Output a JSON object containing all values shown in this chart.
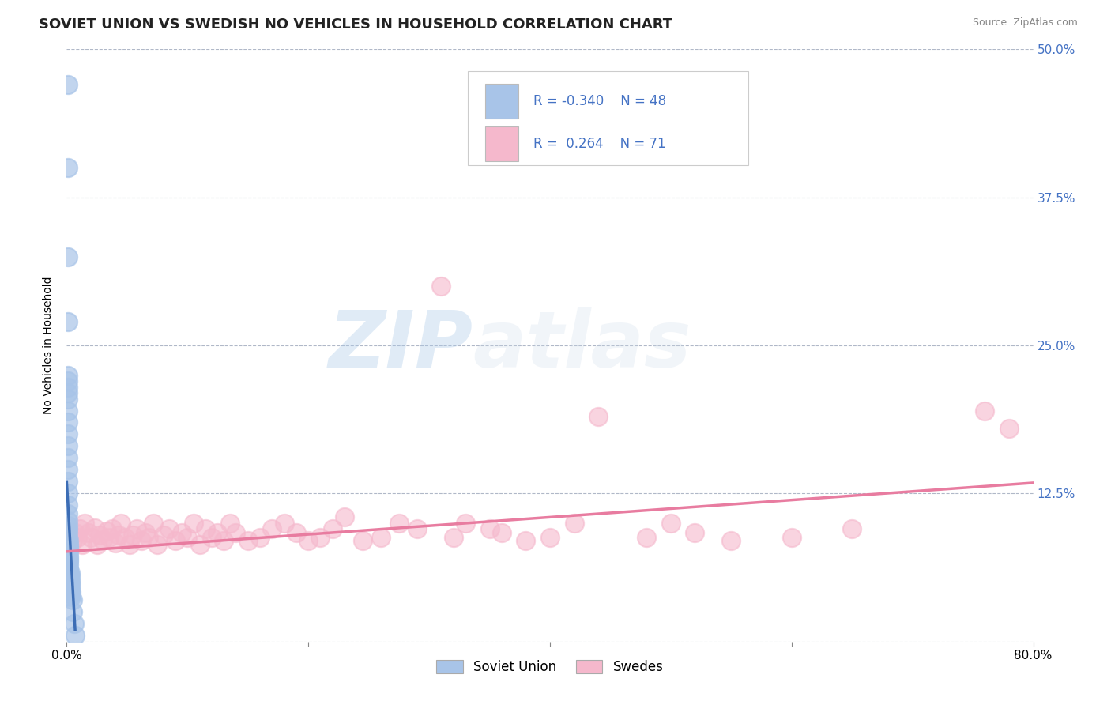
{
  "title": "SOVIET UNION VS SWEDISH NO VEHICLES IN HOUSEHOLD CORRELATION CHART",
  "source": "Source: ZipAtlas.com",
  "ylabel": "No Vehicles in Household",
  "xlim": [
    0.0,
    0.8
  ],
  "ylim": [
    0.0,
    0.5
  ],
  "xticks": [
    0.0,
    0.2,
    0.4,
    0.6,
    0.8
  ],
  "xticklabels": [
    "0.0%",
    "",
    "",
    "",
    "80.0%"
  ],
  "ytick_positions": [
    0.0,
    0.125,
    0.25,
    0.375,
    0.5
  ],
  "ytick_labels_right": [
    "",
    "12.5%",
    "25.0%",
    "37.5%",
    "50.0%"
  ],
  "soviet_R": -0.34,
  "soviet_N": 48,
  "swedes_R": 0.264,
  "swedes_N": 71,
  "soviet_color": "#a8c4e8",
  "swedes_color": "#f5b8cc",
  "soviet_line_color": "#3c6db5",
  "swedes_line_color": "#e87ca0",
  "legend_text_color": "#4472c4",
  "background_color": "#ffffff",
  "grid_color": "#b0b8c8",
  "watermark_zip": "ZIP",
  "watermark_atlas": "atlas",
  "title_fontsize": 13,
  "axis_label_fontsize": 10,
  "tick_fontsize": 11,
  "soviet_x": [
    0.001,
    0.001,
    0.001,
    0.001,
    0.001,
    0.001,
    0.001,
    0.001,
    0.001,
    0.001,
    0.001,
    0.001,
    0.001,
    0.001,
    0.001,
    0.001,
    0.001,
    0.001,
    0.001,
    0.001,
    0.001,
    0.001,
    0.001,
    0.001,
    0.002,
    0.002,
    0.002,
    0.002,
    0.002,
    0.002,
    0.002,
    0.002,
    0.002,
    0.002,
    0.002,
    0.003,
    0.003,
    0.003,
    0.003,
    0.003,
    0.003,
    0.004,
    0.004,
    0.004,
    0.005,
    0.005,
    0.006,
    0.007
  ],
  "soviet_y": [
    0.47,
    0.4,
    0.325,
    0.27,
    0.225,
    0.22,
    0.215,
    0.21,
    0.205,
    0.195,
    0.185,
    0.175,
    0.165,
    0.155,
    0.145,
    0.135,
    0.125,
    0.115,
    0.108,
    0.102,
    0.098,
    0.095,
    0.092,
    0.088,
    0.085,
    0.082,
    0.08,
    0.078,
    0.075,
    0.072,
    0.07,
    0.068,
    0.065,
    0.062,
    0.06,
    0.058,
    0.055,
    0.052,
    0.05,
    0.048,
    0.045,
    0.042,
    0.04,
    0.038,
    0.035,
    0.025,
    0.015,
    0.005
  ],
  "swedes_x": [
    0.003,
    0.005,
    0.007,
    0.009,
    0.011,
    0.013,
    0.015,
    0.018,
    0.02,
    0.023,
    0.025,
    0.027,
    0.03,
    0.033,
    0.035,
    0.038,
    0.04,
    0.043,
    0.045,
    0.048,
    0.052,
    0.055,
    0.058,
    0.062,
    0.065,
    0.068,
    0.072,
    0.075,
    0.08,
    0.085,
    0.09,
    0.095,
    0.1,
    0.105,
    0.11,
    0.115,
    0.12,
    0.125,
    0.13,
    0.135,
    0.14,
    0.15,
    0.16,
    0.17,
    0.18,
    0.19,
    0.2,
    0.21,
    0.22,
    0.23,
    0.245,
    0.26,
    0.275,
    0.29,
    0.31,
    0.32,
    0.33,
    0.35,
    0.36,
    0.38,
    0.4,
    0.42,
    0.44,
    0.48,
    0.5,
    0.52,
    0.55,
    0.6,
    0.65,
    0.76,
    0.78
  ],
  "swedes_y": [
    0.09,
    0.085,
    0.092,
    0.088,
    0.095,
    0.082,
    0.1,
    0.092,
    0.088,
    0.096,
    0.082,
    0.09,
    0.086,
    0.093,
    0.088,
    0.095,
    0.083,
    0.09,
    0.1,
    0.088,
    0.082,
    0.09,
    0.095,
    0.085,
    0.092,
    0.088,
    0.1,
    0.082,
    0.09,
    0.095,
    0.085,
    0.092,
    0.088,
    0.1,
    0.082,
    0.095,
    0.088,
    0.092,
    0.085,
    0.1,
    0.092,
    0.085,
    0.088,
    0.095,
    0.1,
    0.092,
    0.085,
    0.088,
    0.095,
    0.105,
    0.085,
    0.088,
    0.1,
    0.095,
    0.3,
    0.088,
    0.1,
    0.095,
    0.092,
    0.085,
    0.088,
    0.1,
    0.19,
    0.088,
    0.1,
    0.092,
    0.085,
    0.088,
    0.095,
    0.195,
    0.18
  ],
  "swedes_line_x": [
    0.0,
    0.8
  ],
  "swedes_line_y_start": 0.076,
  "swedes_line_y_end": 0.134,
  "soviet_line_x": [
    0.0,
    0.007
  ],
  "soviet_line_y_start": 0.135,
  "soviet_line_y_end": 0.01
}
